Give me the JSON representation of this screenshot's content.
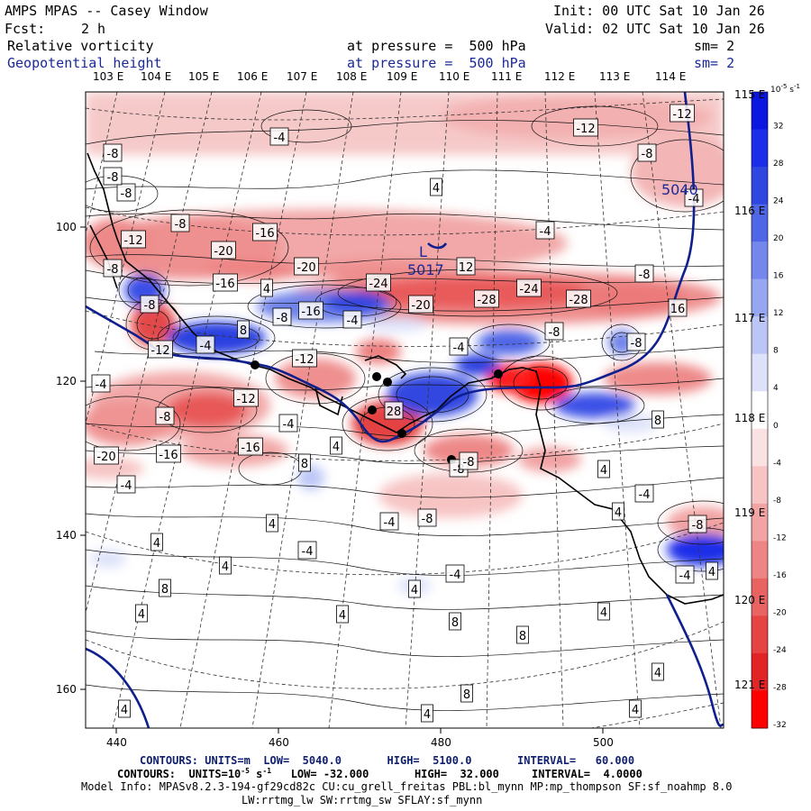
{
  "header": {
    "title": "AMPS MPAS -- Casey Window",
    "init": "Init: 00 UTC Sat 10 Jan 26",
    "fcst_label": "Fcst:",
    "fcst_value": "2 h",
    "valid": "Valid: 02 UTC Sat 10 Jan 26",
    "field1_name": "Relative vorticity",
    "field1_level": "at pressure =  500 hPa",
    "field1_sm": "sm= 2",
    "field2_name": "Geopotential height",
    "field2_level": "at pressure =  500 hPa",
    "field2_sm": "sm= 2"
  },
  "map": {
    "lon_top": [
      "103 E",
      "104 E",
      "105 E",
      "106 E",
      "107 E",
      "108 E",
      "109 E",
      "110 E",
      "111 E",
      "112 E",
      "113 E",
      "114 E"
    ],
    "lon_right": [
      "115 E",
      "116 E",
      "117 E",
      "118 E",
      "119 E",
      "120 E",
      "121 E"
    ],
    "x_ticks": [
      "440",
      "460",
      "480",
      "500"
    ],
    "y_ticks": [
      "100",
      "120",
      "140",
      "160"
    ],
    "vort_labels": [
      "-12",
      "-8",
      "-4",
      "4",
      "8",
      "12",
      "-16",
      "-20",
      "-24",
      "-28",
      "28",
      "16",
      "-8",
      "4",
      "-4",
      "8",
      "-12",
      "-8",
      "4",
      "-4"
    ],
    "height_labels": [
      "5040",
      "5017",
      "L"
    ],
    "hl_letters": [
      "L"
    ]
  },
  "colorbar": {
    "unit_label": "10^-5 s^-1",
    "unit": "10",
    "unit_exp": "-5",
    "unit_s": " s",
    "unit_exp2": "-1",
    "levels": [
      "32",
      "28",
      "24",
      "20",
      "16",
      "12",
      "8",
      "4",
      "0",
      "-4",
      "-8",
      "-12",
      "-16",
      "-20",
      "-24",
      "-28",
      "-32"
    ],
    "colors": [
      "#0b16e0",
      "#1a2de8",
      "#3046e0",
      "#4f66e6",
      "#7387ec",
      "#96a6f1",
      "#bcc6f6",
      "#dde2fa",
      "#ffffff",
      "#fbe2e2",
      "#f7c4c4",
      "#f2a3a3",
      "#ee8585",
      "#ea6363",
      "#e64343",
      "#e22424",
      "#ff0000"
    ]
  },
  "footer": {
    "contours1": "CONTOURS: UNITS=m  LOW=  5040.0       HIGH=  5100.0       INTERVAL=   60.000",
    "contours2": "CONTOURS: UNITS=10^-5 s^-1  LOW= -32.000       HIGH=  32.000     INTERVAL=  4.0000",
    "c2_a": "CONTOURS:  UNITS=10",
    "c2_exp": "-5",
    "c2_b": " s",
    "c2_exp2": "-1",
    "c2_c": "   LOW= -32.000       HIGH=  32.000     INTERVAL=  4.0000",
    "model_info": "Model Info: MPASv8.2.3-194-gf29cd82c CU:cu_grell_freitas PBL:bl_mynn MP:mp_thompson SF:sf_noahmp 8.0",
    "model_info2": "LW:rrtmg_lw SW:rrtmg_sw SFLAY:sf_mynn"
  }
}
